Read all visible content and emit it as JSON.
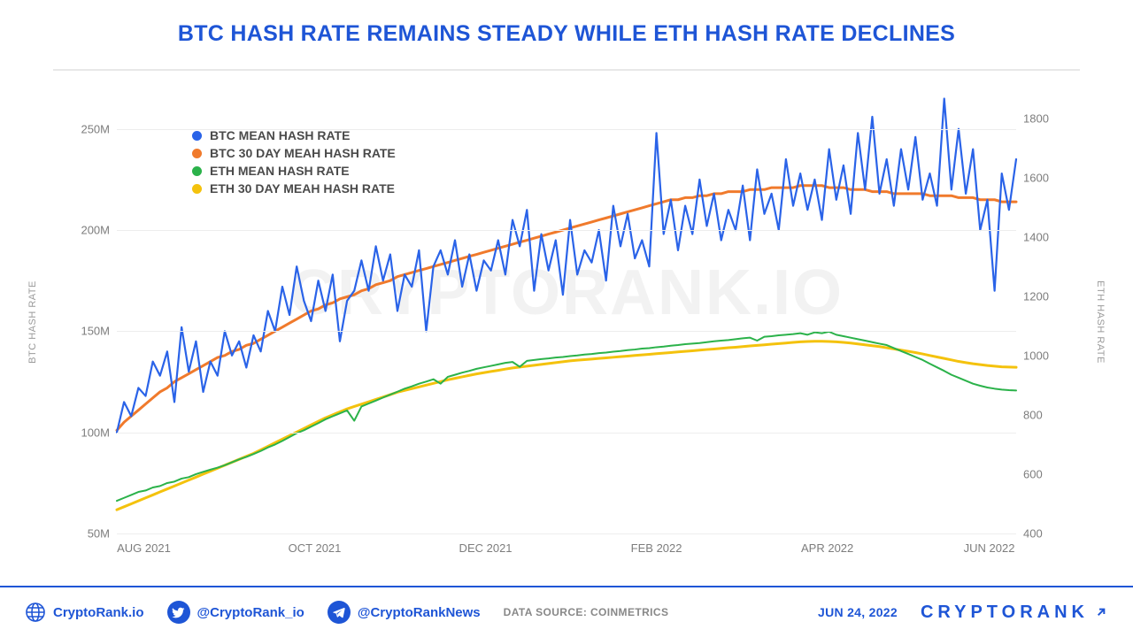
{
  "title": {
    "text": "BTC HASH RATE REMAINS STEADY WHILE ETH HASH RATE DECLINES",
    "color": "#1e55d6",
    "fontsize": 25
  },
  "watermark": "CRYPTORANK.IO",
  "chart": {
    "type": "line-dual-axis",
    "background": "#ffffff",
    "grid_color": "#ededed",
    "axis_color": "#cfcfcf",
    "tick_color": "#7d7d7d",
    "tick_fontsize": 13,
    "axis_label_fontsize": 11,
    "axis_label_color": "#9a9a9a",
    "left_axis": {
      "label": "BTC HASH RATE",
      "min": 50,
      "max": 270,
      "ticks": [
        50,
        100,
        150,
        200,
        250
      ],
      "tick_labels": [
        "50M",
        "100M",
        "150M",
        "200M",
        "250M"
      ]
    },
    "right_axis": {
      "label": "ETH HASH RATE",
      "min": 400,
      "max": 1900,
      "ticks": [
        400,
        600,
        800,
        1000,
        1200,
        1400,
        1600,
        1800
      ]
    },
    "x_axis": {
      "ticks_pct": [
        3,
        22,
        41,
        60,
        79,
        97
      ],
      "tick_labels": [
        "AUG 2021",
        "OCT 2021",
        "DEC 2021",
        "FEB 2022",
        "APR 2022",
        "JUN 2022"
      ]
    },
    "legend": {
      "items": [
        {
          "label": "BTC MEAN HASH RATE",
          "color": "#2a63e8"
        },
        {
          "label": "BTC 30 DAY MEAH HASH RATE",
          "color": "#f07a2c"
        },
        {
          "label": "ETH MEAN HASH RATE",
          "color": "#2bb24a"
        },
        {
          "label": "ETH 30 DAY MEAH HASH RATE",
          "color": "#f4c20d"
        }
      ]
    },
    "series": {
      "btc_mean": {
        "axis": "left",
        "color": "#2a63e8",
        "width": 2.2,
        "values": [
          100,
          115,
          108,
          122,
          118,
          135,
          128,
          140,
          115,
          152,
          130,
          145,
          120,
          135,
          128,
          150,
          138,
          145,
          132,
          148,
          140,
          160,
          150,
          172,
          158,
          182,
          165,
          155,
          175,
          160,
          178,
          145,
          165,
          170,
          185,
          170,
          192,
          175,
          188,
          160,
          178,
          172,
          190,
          150,
          182,
          190,
          178,
          195,
          172,
          188,
          170,
          185,
          180,
          195,
          178,
          205,
          192,
          210,
          170,
          198,
          180,
          195,
          168,
          205,
          178,
          190,
          184,
          200,
          175,
          212,
          192,
          208,
          186,
          195,
          182,
          248,
          198,
          215,
          190,
          212,
          198,
          225,
          202,
          218,
          195,
          210,
          200,
          222,
          195,
          230,
          208,
          218,
          200,
          235,
          212,
          228,
          210,
          225,
          205,
          240,
          215,
          232,
          208,
          248,
          220,
          256,
          218,
          235,
          212,
          240,
          220,
          246,
          215,
          228,
          212,
          265,
          220,
          250,
          218,
          240,
          200,
          215,
          170,
          228,
          210,
          235
        ]
      },
      "btc_30d": {
        "axis": "left",
        "color": "#f07a2c",
        "width": 3.0,
        "values": [
          101,
          105,
          108,
          111,
          114,
          117,
          120,
          122,
          125,
          127,
          129,
          131,
          133,
          135,
          137,
          138,
          140,
          141,
          143,
          144,
          146,
          148,
          150,
          152,
          154,
          156,
          158,
          160,
          161,
          163,
          164,
          166,
          167,
          168,
          170,
          171,
          173,
          174,
          175,
          177,
          178,
          179,
          180,
          181,
          182,
          183,
          184,
          185,
          186,
          187,
          188,
          189,
          190,
          191,
          192,
          193,
          194,
          195,
          196,
          197,
          198,
          199,
          200,
          201,
          202,
          203,
          204,
          205,
          206,
          207,
          208,
          209,
          210,
          211,
          212,
          213,
          214,
          215,
          215,
          216,
          216,
          217,
          217,
          218,
          218,
          219,
          219,
          219,
          220,
          220,
          220,
          221,
          221,
          221,
          221,
          222,
          222,
          222,
          222,
          221,
          221,
          221,
          220,
          220,
          220,
          219,
          219,
          219,
          218,
          218,
          218,
          218,
          218,
          217,
          217,
          217,
          217,
          216,
          216,
          216,
          215,
          215,
          215,
          214,
          214,
          214
        ]
      },
      "eth_mean": {
        "axis": "right",
        "color": "#2bb24a",
        "width": 2.0,
        "values": [
          510,
          520,
          530,
          540,
          545,
          555,
          560,
          570,
          575,
          585,
          590,
          600,
          608,
          615,
          622,
          630,
          640,
          650,
          658,
          668,
          678,
          690,
          700,
          712,
          725,
          738,
          748,
          760,
          772,
          785,
          795,
          805,
          815,
          780,
          828,
          838,
          848,
          858,
          868,
          878,
          888,
          896,
          905,
          912,
          920,
          905,
          928,
          935,
          942,
          948,
          955,
          960,
          965,
          970,
          975,
          978,
          962,
          982,
          985,
          988,
          990,
          993,
          995,
          998,
          1000,
          1003,
          1005,
          1008,
          1010,
          1013,
          1015,
          1018,
          1020,
          1023,
          1025,
          1028,
          1030,
          1033,
          1035,
          1038,
          1040,
          1042,
          1045,
          1048,
          1050,
          1052,
          1055,
          1058,
          1060,
          1050,
          1063,
          1065,
          1068,
          1070,
          1072,
          1075,
          1070,
          1078,
          1075,
          1080,
          1070,
          1065,
          1060,
          1055,
          1050,
          1045,
          1040,
          1035,
          1025,
          1015,
          1005,
          995,
          985,
          972,
          960,
          948,
          935,
          925,
          915,
          905,
          898,
          892,
          888,
          885,
          883,
          882
        ]
      },
      "eth_30d": {
        "axis": "right",
        "color": "#f4c20d",
        "width": 3.0,
        "values": [
          480,
          490,
          500,
          510,
          520,
          530,
          540,
          550,
          560,
          570,
          580,
          590,
          600,
          610,
          620,
          630,
          640,
          650,
          660,
          670,
          682,
          694,
          706,
          718,
          730,
          742,
          754,
          766,
          778,
          790,
          800,
          810,
          820,
          828,
          836,
          844,
          852,
          860,
          868,
          876,
          882,
          888,
          894,
          900,
          906,
          912,
          918,
          923,
          928,
          933,
          938,
          942,
          946,
          950,
          954,
          958,
          961,
          964,
          967,
          970,
          973,
          976,
          979,
          982,
          984,
          986,
          988,
          990,
          992,
          994,
          996,
          998,
          1000,
          1002,
          1004,
          1006,
          1008,
          1010,
          1012,
          1014,
          1016,
          1018,
          1020,
          1022,
          1024,
          1026,
          1028,
          1030,
          1032,
          1034,
          1036,
          1038,
          1040,
          1042,
          1044,
          1046,
          1047,
          1048,
          1048,
          1047,
          1046,
          1044,
          1042,
          1039,
          1036,
          1033,
          1030,
          1026,
          1022,
          1018,
          1014,
          1010,
          1005,
          1000,
          995,
          990,
          985,
          980,
          976,
          972,
          969,
          966,
          964,
          962,
          961,
          960
        ]
      }
    }
  },
  "footer": {
    "links": [
      {
        "icon": "globe",
        "text": "CryptoRank.io"
      },
      {
        "icon": "twitter",
        "text": "@CryptoRank_io"
      },
      {
        "icon": "telegram",
        "text": "@CryptoRankNews"
      }
    ],
    "source_label": "DATA SOURCE: COINMETRICS",
    "date": "JUN 24, 2022",
    "brand": "CRYPTORANK",
    "brand_color": "#1e55d6"
  }
}
